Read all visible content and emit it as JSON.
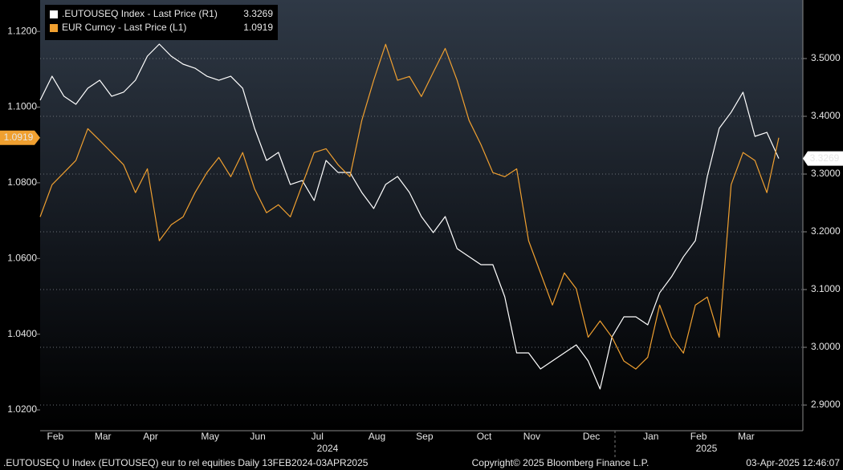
{
  "chart_data": {
    "type": "line",
    "legend": {
      "corner": "top-left"
    },
    "categories": [
      null,
      "Feb",
      null,
      null,
      null,
      "Mar",
      null,
      null,
      null,
      "Apr",
      null,
      null,
      null,
      null,
      "May",
      null,
      null,
      null,
      "Jun",
      null,
      null,
      null,
      null,
      "Jul",
      null,
      null,
      null,
      null,
      "Aug",
      null,
      null,
      null,
      "Sep",
      null,
      null,
      null,
      null,
      "Oct",
      null,
      null,
      null,
      "Nov",
      null,
      null,
      null,
      null,
      "Dec",
      null,
      null,
      null,
      null,
      "Jan",
      null,
      null,
      null,
      "Feb",
      null,
      null,
      null,
      "Mar",
      null,
      null,
      null
    ],
    "years": [
      "2024",
      "2025"
    ],
    "series": [
      {
        "name": ".EUTOUSEQ Index - Last Price (R1)",
        "color": "#ffffff",
        "axis": "y2",
        "values": [
          3.4278,
          3.4694,
          3.4347,
          3.4208,
          3.4486,
          3.4625,
          3.4347,
          3.4417,
          3.4625,
          3.5042,
          3.525,
          3.5042,
          3.4903,
          3.4833,
          3.4694,
          3.4625,
          3.4694,
          3.4486,
          3.3792,
          3.3236,
          3.3375,
          3.2819,
          3.2889,
          3.2542,
          3.3236,
          3.3028,
          3.3028,
          3.2681,
          3.2403,
          3.2819,
          3.2958,
          3.2681,
          3.2264,
          3.1986,
          3.2264,
          3.1708,
          3.1569,
          3.1431,
          3.1431,
          3.0875,
          2.9903,
          2.9903,
          2.9625,
          2.9764,
          2.9903,
          3.0042,
          2.9764,
          2.9278,
          3.0181,
          3.0528,
          3.0528,
          3.0389,
          3.0944,
          3.1222,
          3.1569,
          3.1847,
          3.2958,
          3.3792,
          3.4069,
          3.4417,
          3.3653,
          3.3722,
          3.3269
        ]
      },
      {
        "name": "EUR Curncy - Last Price (L1)",
        "color": "#f0a030",
        "values": [
          1.071,
          1.0795,
          1.0827,
          1.0859,
          1.0943,
          1.0912,
          1.088,
          1.0848,
          1.0774,
          1.0837,
          1.0647,
          1.0689,
          1.071,
          1.0774,
          1.0827,
          1.0867,
          1.0816,
          1.088,
          1.0784,
          1.0721,
          1.0742,
          1.071,
          1.0795,
          1.088,
          1.089,
          1.0848,
          1.0816,
          1.0965,
          1.1071,
          1.1166,
          1.1071,
          1.1081,
          1.1028,
          1.1092,
          1.1155,
          1.1071,
          1.0965,
          1.0901,
          1.0827,
          1.0816,
          1.0837,
          1.0647,
          1.0562,
          1.0477,
          1.0562,
          1.052,
          1.0392,
          1.0435,
          1.0392,
          1.0329,
          1.0308,
          1.0339,
          1.0477,
          1.0392,
          1.035,
          1.0477,
          1.0498,
          1.0392,
          1.0795,
          1.088,
          1.0859,
          1.0774,
          1.0919
        ]
      }
    ],
    "ylim": [
      1.0145,
      1.1283
    ],
    "yticks": [
      {
        "value": 1.02,
        "label": "1.0200"
      },
      {
        "value": 1.04,
        "label": "1.0400"
      },
      {
        "value": 1.06,
        "label": "1.0600"
      },
      {
        "value": 1.08,
        "label": "1.0800"
      },
      {
        "value": 1.1,
        "label": "1.1000"
      },
      {
        "value": 1.12,
        "label": "1.1200"
      }
    ],
    "y2lim": [
      2.8556,
      3.6014
    ],
    "y2ticks": [
      {
        "value": 2.9,
        "label": "2.9000"
      },
      {
        "value": 3.0,
        "label": "3.0000"
      },
      {
        "value": 3.1,
        "label": "3.1000"
      },
      {
        "value": 3.2,
        "label": "3.2000"
      },
      {
        "value": 3.3,
        "label": "3.3000"
      },
      {
        "value": 3.4,
        "label": "3.4000"
      },
      {
        "value": 3.5,
        "label": "3.5000"
      }
    ],
    "grid": true,
    "footer": {
      "left": ".EUTOUSEQ U Index (EUTOUSEQ) eur to rel equities  Daily 13FEB2024-03APR2025",
      "center": "Copyright© 2025 Bloomberg Finance L.P.",
      "right": "03-Apr-2025 12:46:07"
    }
  }
}
